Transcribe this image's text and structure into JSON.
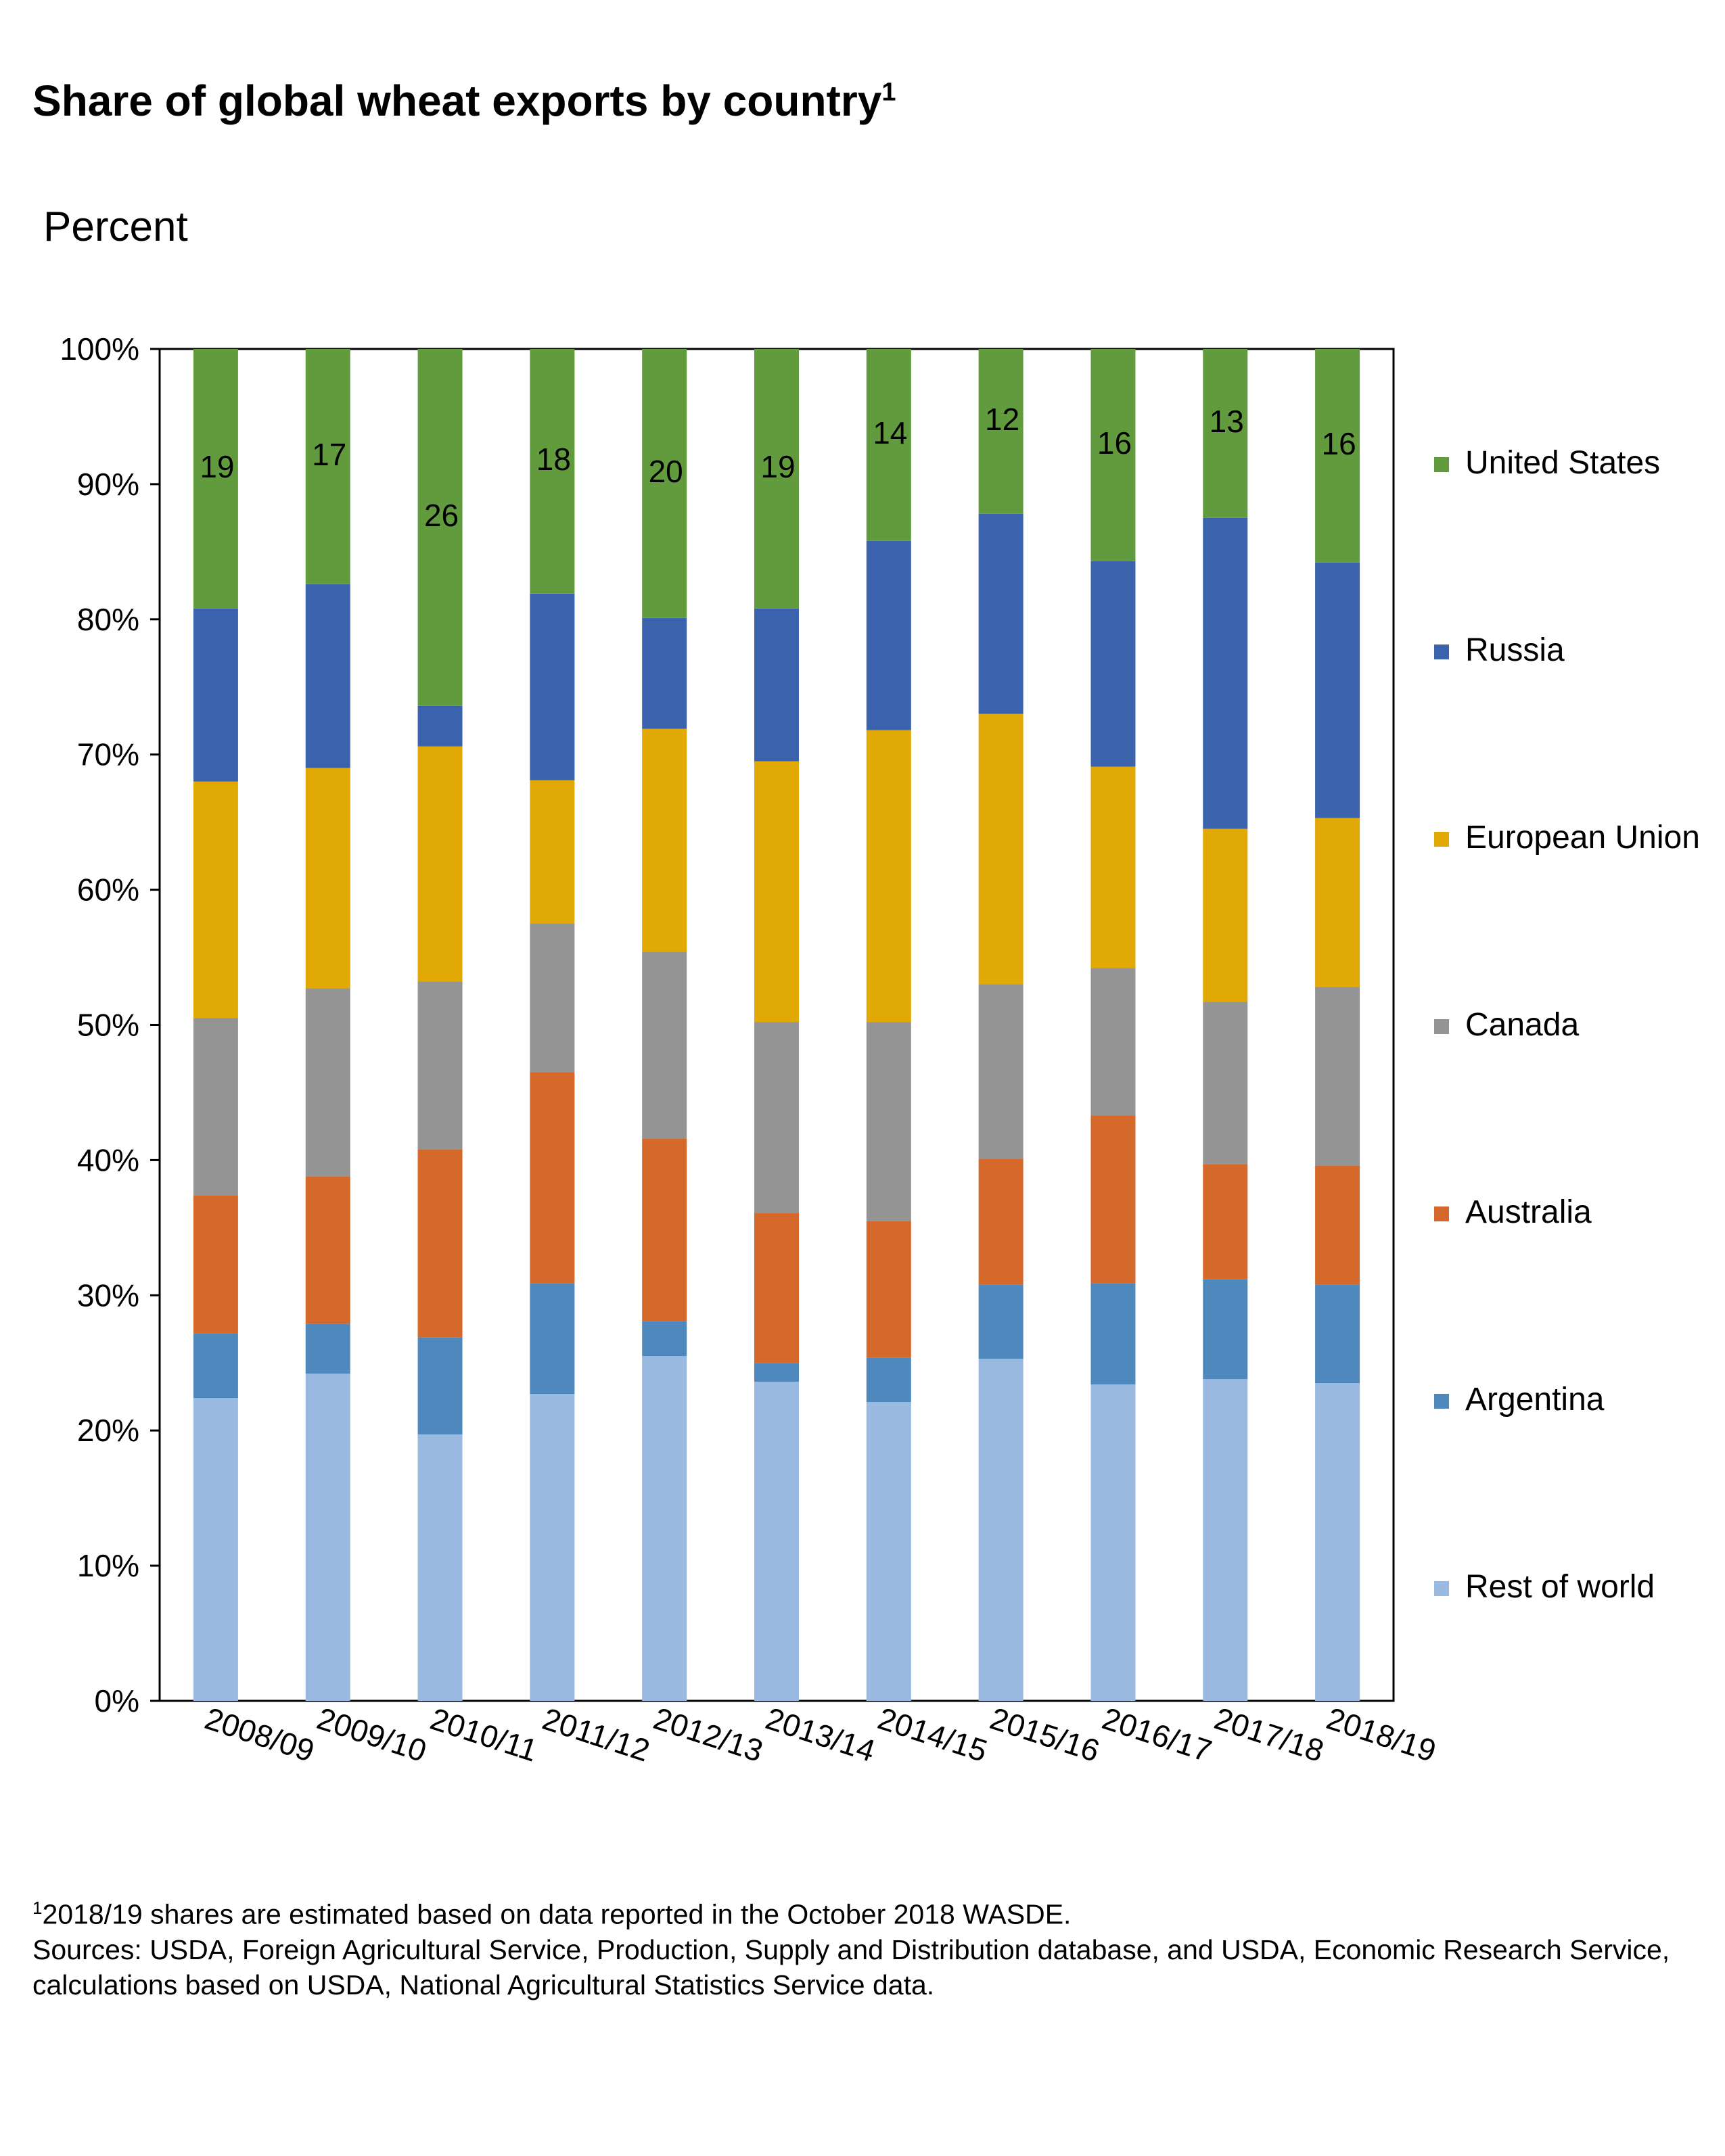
{
  "title": "Share of global wheat exports by country",
  "title_superscript": "1",
  "y_unit": "Percent",
  "footnote_marker": "1",
  "footnote": "2018/19 shares are estimated based on data reported in the October 2018 WASDE.",
  "sources_line1": "Sources: USDA, Foreign Agricultural Service, Production, Supply and Distribution database, and USDA, Economic Research Service,",
  "sources_line2": "calculations based on USDA, National Agricultural Statistics Service data.",
  "chart_data": {
    "type": "bar",
    "stacked": true,
    "title": "Share of global wheat exports by country",
    "ylabel": "Percent",
    "ylim": [
      0,
      100
    ],
    "y_ticks": [
      "0%",
      "10%",
      "20%",
      "30%",
      "40%",
      "50%",
      "60%",
      "70%",
      "80%",
      "90%",
      "100%"
    ],
    "categories": [
      "2008/09",
      "2009/10",
      "2010/11",
      "2011/12",
      "2012/13",
      "2013/14",
      "2014/15",
      "2015/16",
      "2016/17",
      "2017/18",
      "2018/19"
    ],
    "series": [
      {
        "name": "Rest of world",
        "color": "#9AB9E0",
        "values": [
          22.4,
          24.2,
          19.7,
          22.7,
          25.5,
          23.6,
          22.1,
          25.3,
          23.4,
          23.8,
          23.5
        ]
      },
      {
        "name": "Argentina",
        "color": "#4F88BC",
        "values": [
          4.8,
          3.7,
          7.2,
          8.2,
          2.6,
          1.4,
          3.3,
          5.5,
          7.5,
          7.4,
          7.3
        ]
      },
      {
        "name": "Australia",
        "color": "#D4692B",
        "values": [
          10.2,
          10.9,
          13.9,
          15.6,
          13.5,
          11.1,
          10.1,
          9.3,
          12.4,
          8.5,
          8.8
        ]
      },
      {
        "name": "Canada",
        "color": "#949494",
        "values": [
          13.1,
          13.9,
          12.4,
          11.0,
          13.8,
          14.1,
          14.7,
          12.9,
          10.9,
          12.0,
          13.2
        ]
      },
      {
        "name": "European Union",
        "color": "#E1A905",
        "values": [
          17.5,
          16.3,
          17.4,
          10.6,
          16.5,
          19.3,
          21.6,
          20.0,
          14.9,
          12.8,
          12.5
        ]
      },
      {
        "name": "Russia",
        "color": "#3B63AD",
        "values": [
          12.8,
          13.6,
          3.0,
          13.8,
          8.2,
          11.3,
          14.0,
          14.8,
          15.2,
          23.0,
          18.9
        ]
      },
      {
        "name": "United States",
        "color": "#629B3E",
        "values": [
          19.2,
          17.4,
          26.4,
          18.1,
          19.9,
          19.2,
          14.2,
          12.2,
          15.7,
          12.5,
          15.8
        ]
      }
    ],
    "us_labels": [
      "19",
      "17",
      "26",
      "18",
      "20",
      "19",
      "14",
      "12",
      "16",
      "13",
      "16"
    ],
    "legend_order": [
      "United States",
      "Russia",
      "European Union",
      "Canada",
      "Australia",
      "Argentina",
      "Rest of world"
    ],
    "legend_position": "right"
  }
}
